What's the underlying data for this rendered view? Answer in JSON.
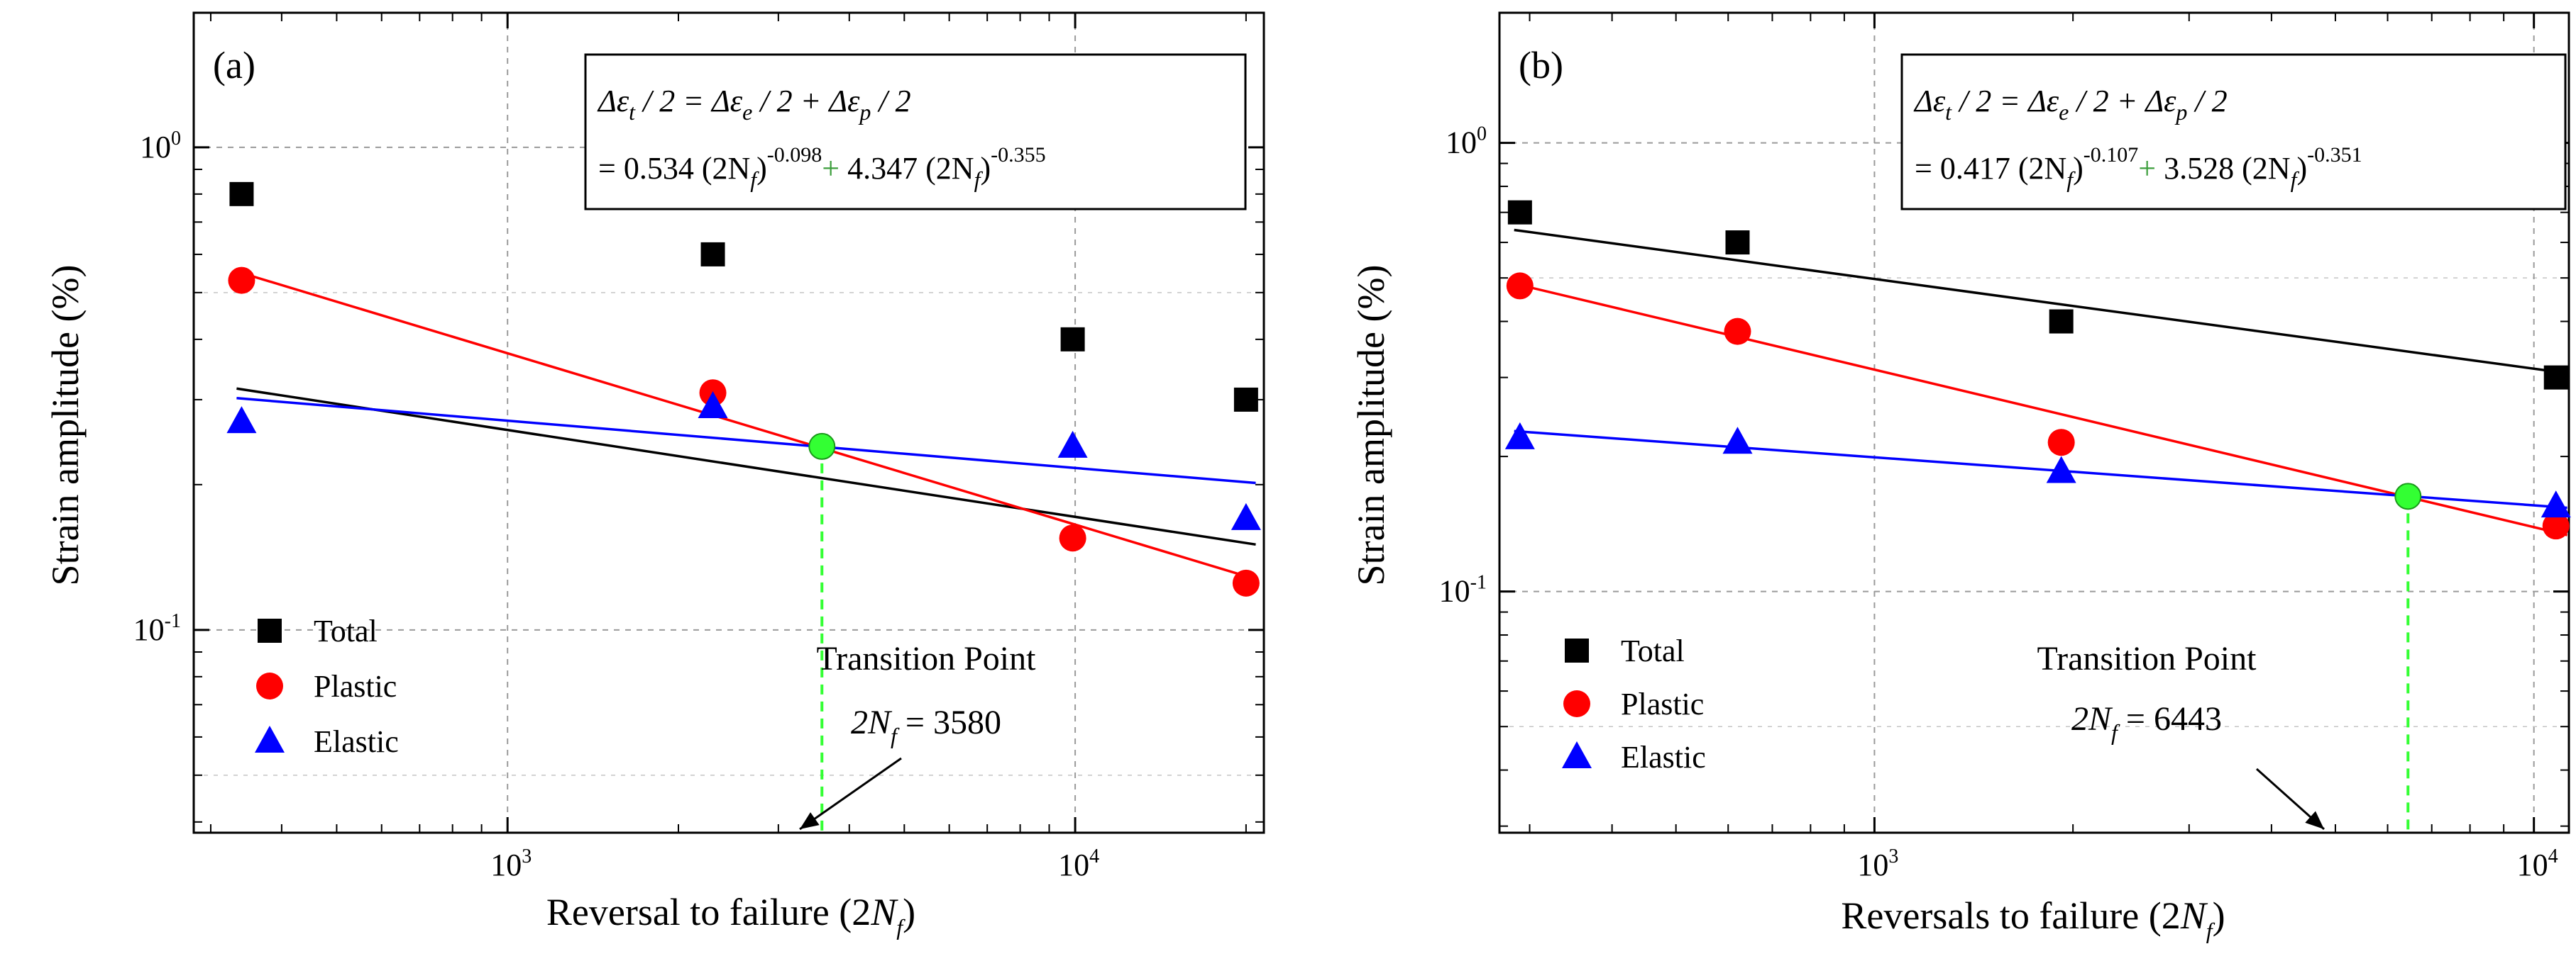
{
  "chart_data": [
    {
      "type": "scatter",
      "panel_label": "(a)",
      "xlabel": "Reversal to failure (2N",
      "xlabel_sub": "f",
      "xlabel_end": ")",
      "ylabel": "Strain amplitude (%)",
      "xscale": "log",
      "yscale": "log",
      "xlim": [
        280,
        21500
      ],
      "ylim": [
        0.038,
        1.9
      ],
      "x_ticks": [
        {
          "value": 1000,
          "base": "10",
          "exp": "3"
        },
        {
          "value": 10000,
          "base": "10",
          "exp": "4"
        }
      ],
      "y_ticks": [
        {
          "value": 0.1,
          "base": "10",
          "exp": "-1"
        },
        {
          "value": 1,
          "base": "10",
          "exp": "0"
        }
      ],
      "grid": true,
      "legend_position": "bottom-left",
      "series": [
        {
          "name": "Total",
          "color": "#000000",
          "marker": "square",
          "points": [
            [
              340,
              0.8
            ],
            [
              2300,
              0.6
            ],
            [
              9900,
              0.4
            ],
            [
              20000,
              0.3
            ]
          ],
          "fit": {
            "coef": 0.9,
            "exp": -0.18
          }
        },
        {
          "name": "Plastic",
          "color": "#ff0000",
          "marker": "circle",
          "points": [
            [
              340,
              0.53
            ],
            [
              2300,
              0.31
            ],
            [
              9900,
              0.155
            ],
            [
              20000,
              0.125
            ]
          ],
          "fit": {
            "coef": 4.347,
            "exp": -0.355
          }
        },
        {
          "name": "Elastic",
          "color": "#0000ff",
          "marker": "triangle",
          "points": [
            [
              340,
              0.27
            ],
            [
              2300,
              0.29
            ],
            [
              9900,
              0.24
            ],
            [
              20000,
              0.17
            ]
          ],
          "fit": {
            "coef": 0.534,
            "exp": -0.098
          }
        }
      ],
      "transition": {
        "x": 3580,
        "y": 0.24,
        "color": "#33ff33",
        "label_title": "Transition Point",
        "label_pre": "2N",
        "label_sub": "f",
        "label_post": " = 3580"
      },
      "equation": {
        "line1": {
          "d1": "Δε",
          "s1": "t",
          "t1": " / 2 = Δε",
          "s2": "e",
          "t2": " / 2 + Δε",
          "s3": "p",
          "t3": " / 2"
        },
        "line2": {
          "a": "= 0.534 (2N",
          "sa": "f",
          "b": ")",
          "ea": "-0.098",
          "plus": "+",
          "c": " 4.347 (2N",
          "sc": "f",
          "d": ")",
          "ec": "-0.355"
        }
      }
    },
    {
      "type": "scatter",
      "panel_label": "(b)",
      "xlabel": "Reversals to failure (2N",
      "xlabel_sub": "f",
      "xlabel_end": ")",
      "ylabel": "Strain amplitude (%)",
      "xscale": "log",
      "yscale": "log",
      "xlim": [
        270,
        11300
      ],
      "ylim": [
        0.029,
        1.95
      ],
      "x_ticks": [
        {
          "value": 1000,
          "base": "10",
          "exp": "3"
        },
        {
          "value": 10000,
          "base": "10",
          "exp": "4"
        }
      ],
      "y_ticks": [
        {
          "value": 0.1,
          "base": "10",
          "exp": "-1"
        },
        {
          "value": 1,
          "base": "10",
          "exp": "0"
        }
      ],
      "grid": true,
      "legend_position": "bottom-left",
      "series": [
        {
          "name": "Total",
          "color": "#000000",
          "marker": "square",
          "points": [
            [
              290,
              0.7
            ],
            [
              620,
              0.6
            ],
            [
              1920,
              0.4
            ],
            [
              10800,
              0.3
            ]
          ],
          "fit": {
            "coef": 1.98,
            "exp": -0.2
          }
        },
        {
          "name": "Plastic",
          "color": "#ff0000",
          "marker": "circle",
          "points": [
            [
              290,
              0.48
            ],
            [
              620,
              0.38
            ],
            [
              1920,
              0.215
            ],
            [
              10800,
              0.14
            ]
          ],
          "fit": {
            "coef": 3.528,
            "exp": -0.351
          }
        },
        {
          "name": "Elastic",
          "color": "#0000ff",
          "marker": "triangle",
          "points": [
            [
              290,
              0.22
            ],
            [
              620,
              0.215
            ],
            [
              1920,
              0.185
            ],
            [
              10800,
              0.155
            ]
          ],
          "fit": {
            "coef": 0.417,
            "exp": -0.107
          }
        }
      ],
      "transition": {
        "x": 6443,
        "y": 0.163,
        "color": "#33ff33",
        "label_title": "Transition Point",
        "label_pre": "2N",
        "label_sub": "f",
        "label_post": " = 6443"
      },
      "equation": {
        "line1": {
          "d1": "Δε",
          "s1": "t",
          "t1": " / 2 = Δε",
          "s2": "e",
          "t2": " / 2 + Δε",
          "s3": "p",
          "t3": " / 2"
        },
        "line2": {
          "a": "= 0.417 (2N",
          "sa": "f",
          "b": ")",
          "ea": "-0.107",
          "plus": "+",
          "c": " 3.528 (2N",
          "sc": "f",
          "d": ")",
          "ec": "-0.351"
        }
      }
    }
  ]
}
